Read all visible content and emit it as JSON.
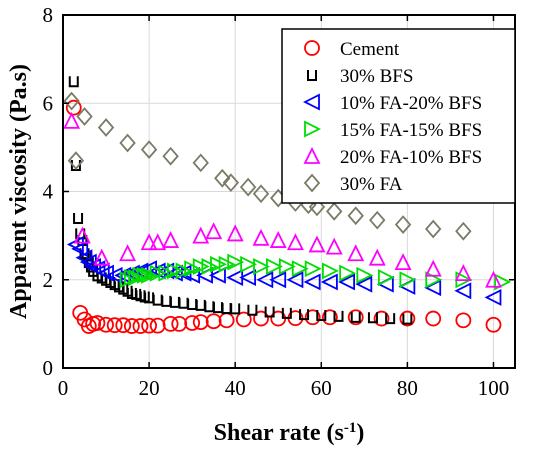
{
  "chart_data": {
    "type": "scatter",
    "title": "",
    "xlabel": "Shear rate (s",
    "xlabel_sup": "-1",
    "xlabel_close": ")",
    "ylabel": "Apparent viscosity (Pa.s)",
    "xlim": [
      0,
      105
    ],
    "ylim": [
      0,
      8
    ],
    "xticks": [
      0,
      20,
      40,
      60,
      80,
      100
    ],
    "yticks": [
      0,
      2,
      4,
      6,
      8
    ],
    "grid": true,
    "legend_position": "top-right",
    "series": [
      {
        "name": "Cement",
        "marker": "circle",
        "color": "#ff0000",
        "x": [
          2.5,
          4,
          5,
          6,
          7,
          8,
          10,
          12,
          14,
          16,
          18,
          20,
          22,
          25,
          27,
          30,
          32,
          35,
          38,
          42,
          46,
          50,
          54,
          58,
          62,
          68,
          74,
          80,
          86,
          93,
          100
        ],
        "y": [
          5.9,
          1.25,
          1.1,
          0.95,
          1.0,
          1.02,
          0.98,
          0.97,
          0.97,
          0.95,
          0.95,
          0.96,
          0.96,
          1.0,
          1.0,
          1.02,
          1.04,
          1.06,
          1.08,
          1.1,
          1.12,
          1.12,
          1.13,
          1.15,
          1.15,
          1.15,
          1.12,
          1.12,
          1.12,
          1.08,
          0.98
        ]
      },
      {
        "name": "30% BFS",
        "marker": "square",
        "color": "#000000",
        "x": [
          2.5,
          3,
          3.5,
          4,
          4.5,
          5,
          5.5,
          6,
          6.5,
          7,
          8,
          9,
          10,
          11,
          12,
          13,
          14,
          15,
          16,
          17,
          18,
          19,
          20,
          22,
          24,
          26,
          28,
          30,
          32,
          34,
          36,
          38,
          40,
          44,
          48,
          52,
          56,
          60,
          64,
          68,
          72,
          76,
          80
        ],
        "y": [
          6.5,
          4.6,
          3.4,
          3.05,
          2.9,
          2.6,
          2.55,
          2.4,
          2.3,
          2.2,
          2.1,
          2.05,
          2.0,
          1.95,
          1.9,
          1.85,
          1.8,
          1.75,
          1.7,
          1.68,
          1.65,
          1.62,
          1.6,
          1.55,
          1.52,
          1.5,
          1.48,
          1.45,
          1.43,
          1.4,
          1.38,
          1.36,
          1.35,
          1.32,
          1.28,
          1.25,
          1.22,
          1.2,
          1.18,
          1.16,
          1.15,
          1.13,
          1.12
        ]
      },
      {
        "name": "10% FA-20% BFS",
        "marker": "triangle-left",
        "color": "#0000ff",
        "x": [
          3,
          4,
          5,
          6,
          7,
          8,
          9,
          10,
          12,
          14,
          16,
          18,
          20,
          22,
          24,
          26,
          28,
          30,
          33,
          36,
          40,
          43,
          47,
          50,
          54,
          58,
          62,
          66,
          70,
          75,
          80,
          86,
          93,
          100
        ],
        "y": [
          2.8,
          2.7,
          2.5,
          2.4,
          2.3,
          2.25,
          2.2,
          2.15,
          2.1,
          2.1,
          2.15,
          2.2,
          2.25,
          2.2,
          2.2,
          2.15,
          2.15,
          2.1,
          2.1,
          2.1,
          2.05,
          2.05,
          2.0,
          2.0,
          2.0,
          1.95,
          1.95,
          1.95,
          1.9,
          1.9,
          1.85,
          1.82,
          1.75,
          1.6
        ]
      },
      {
        "name": "15% FA-15% BFS",
        "marker": "triangle-right",
        "color": "#00dd00",
        "x": [
          15,
          16,
          17,
          18,
          19,
          20,
          22,
          24,
          26,
          28,
          30,
          32,
          34,
          36,
          38,
          40,
          43,
          46,
          49,
          52,
          55,
          58,
          62,
          66,
          70,
          75,
          80,
          86,
          93,
          102
        ],
        "y": [
          2.0,
          2.05,
          2.05,
          2.1,
          2.1,
          2.1,
          2.15,
          2.15,
          2.2,
          2.2,
          2.25,
          2.3,
          2.3,
          2.35,
          2.35,
          2.4,
          2.35,
          2.3,
          2.3,
          2.3,
          2.25,
          2.25,
          2.2,
          2.15,
          2.1,
          2.05,
          2.0,
          2.0,
          2.0,
          1.95
        ]
      },
      {
        "name": "20% FA-10% BFS",
        "marker": "triangle-up",
        "color": "#ff00ff",
        "x": [
          2,
          4.5,
          9,
          15,
          20,
          22,
          25,
          32,
          35,
          40,
          46,
          50,
          54,
          59,
          63,
          68,
          73,
          79,
          86,
          93,
          100
        ],
        "y": [
          5.6,
          3.0,
          2.5,
          2.6,
          2.85,
          2.85,
          2.9,
          3.0,
          3.1,
          3.05,
          2.95,
          2.9,
          2.85,
          2.8,
          2.75,
          2.6,
          2.5,
          2.4,
          2.25,
          2.15,
          2.0
        ]
      },
      {
        "name": "30% FA",
        "marker": "diamond",
        "color": "#7a7a66",
        "x": [
          2,
          3,
          5,
          10,
          15,
          20,
          25,
          32,
          37,
          39,
          43,
          46,
          50,
          54,
          57,
          59,
          63,
          68,
          73,
          79,
          86,
          93
        ],
        "y": [
          6.05,
          4.7,
          5.7,
          5.45,
          5.1,
          4.95,
          4.8,
          4.65,
          4.3,
          4.2,
          4.1,
          3.95,
          3.85,
          3.75,
          3.7,
          3.65,
          3.55,
          3.45,
          3.35,
          3.25,
          3.15,
          3.1
        ]
      }
    ]
  }
}
